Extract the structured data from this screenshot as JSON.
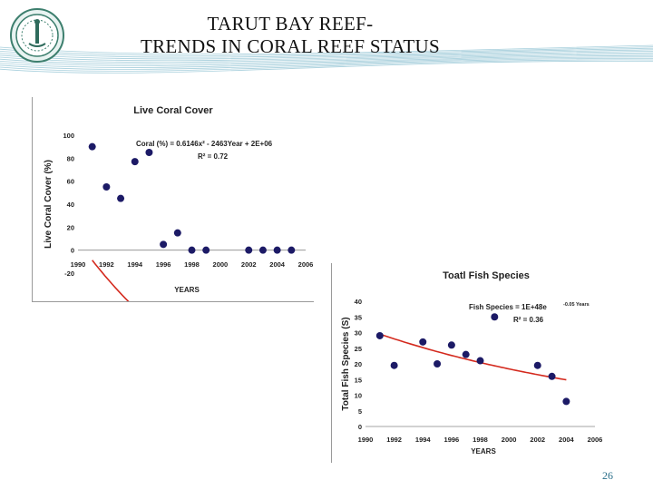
{
  "slide": {
    "title_line1": "TARUT BAY REEF-",
    "title_line2": "TRENDS IN CORAL REEF STATUS",
    "page_number": "26",
    "colors": {
      "banner_stripes": "#5fa8c0",
      "marker": "#1c1a66",
      "trend_line": "#d42a1e",
      "title_text": "#111111"
    },
    "logo": {
      "icon": "university-seal-icon"
    }
  },
  "chart_data": [
    {
      "id": "coral",
      "type": "scatter",
      "title": "Live Coral Cover",
      "xlabel": "YEARS",
      "ylabel": "Live Coral Cover (%)",
      "xlim": [
        1990,
        2006
      ],
      "ylim": [
        -20,
        100
      ],
      "xticks": [
        "1990",
        "1992",
        "1994",
        "1996",
        "1998",
        "2000",
        "2002",
        "2004",
        "2006"
      ],
      "yticks": [
        "-20",
        "0",
        "20",
        "40",
        "60",
        "80",
        "100"
      ],
      "points": [
        [
          1991,
          90
        ],
        [
          1992,
          55
        ],
        [
          1993,
          45
        ],
        [
          1994,
          77
        ],
        [
          1995,
          85
        ],
        [
          1996,
          5
        ],
        [
          1997,
          15
        ],
        [
          1998,
          0
        ],
        [
          1999,
          0
        ],
        [
          2002,
          0
        ],
        [
          2003,
          0
        ],
        [
          2004,
          0
        ],
        [
          2005,
          0
        ]
      ],
      "trendline": {
        "type": "polynomial",
        "coef": [
          0.6146,
          -2463,
          2467500
        ],
        "x_range": [
          1991,
          2005
        ]
      },
      "equation_text": "Coral (%) = 0.6146x² - 2463Year + 2E+06",
      "r2_text": "R² = 0.72",
      "grid": false
    },
    {
      "id": "fish",
      "type": "scatter",
      "title": "Toatl Fish Species",
      "xlabel": "YEARS",
      "ylabel": "Total Fish Species (S)",
      "xlim": [
        1990,
        2006
      ],
      "ylim": [
        0,
        40
      ],
      "xticks": [
        "1990",
        "1992",
        "1994",
        "1996",
        "1998",
        "2000",
        "2002",
        "2004",
        "2006"
      ],
      "yticks": [
        "0",
        "5",
        "10",
        "15",
        "20",
        "25",
        "30",
        "35",
        "40"
      ],
      "points": [
        [
          1991,
          29
        ],
        [
          1992,
          19.5
        ],
        [
          1994,
          27
        ],
        [
          1995,
          20
        ],
        [
          1996,
          26
        ],
        [
          1997,
          23
        ],
        [
          1998,
          21
        ],
        [
          1999,
          35
        ],
        [
          2002,
          19.5
        ],
        [
          2003,
          16
        ],
        [
          2004,
          8
        ]
      ],
      "trendline": {
        "type": "exponential",
        "a": 29.5,
        "b": -0.0525,
        "x0": 1991,
        "x_range": [
          1991,
          2004
        ]
      },
      "equation_text": "Fish Species = 1E+48e",
      "equation_exponent": "-0.05 Years",
      "r2_text": "R² = 0.36",
      "grid": false
    }
  ]
}
